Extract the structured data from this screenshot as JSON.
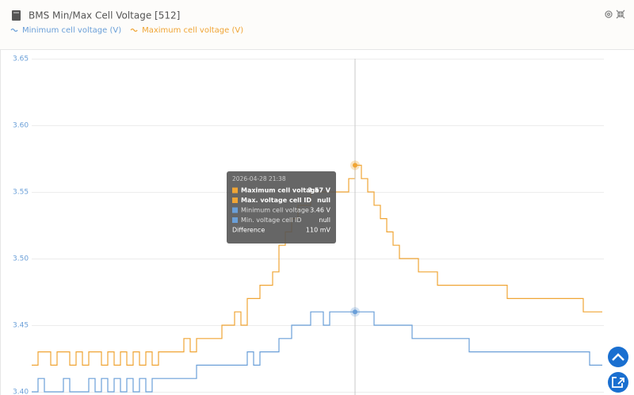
{
  "chart_data": {
    "type": "line",
    "title": "BMS Min/Max Cell Voltage [512]",
    "series": [
      {
        "name": "Minimum cell voltage (V)",
        "color": "#6a9fd8",
        "values": [
          3.4,
          3.41,
          3.4,
          3.4,
          3.4,
          3.41,
          3.4,
          3.4,
          3.4,
          3.41,
          3.4,
          3.41,
          3.4,
          3.41,
          3.4,
          3.41,
          3.4,
          3.41,
          3.4,
          3.41,
          3.41,
          3.41,
          3.41,
          3.41,
          3.41,
          3.41,
          3.42,
          3.42,
          3.42,
          3.42,
          3.42,
          3.42,
          3.42,
          3.42,
          3.43,
          3.42,
          3.43,
          3.43,
          3.43,
          3.44,
          3.44,
          3.45,
          3.45,
          3.45,
          3.46,
          3.46,
          3.45,
          3.46,
          3.46,
          3.46,
          3.46,
          3.46,
          3.46,
          3.46,
          3.45,
          3.45,
          3.45,
          3.45,
          3.45,
          3.45,
          3.44,
          3.44,
          3.44,
          3.44,
          3.44,
          3.44,
          3.44,
          3.44,
          3.44,
          3.43,
          3.43,
          3.43,
          3.43,
          3.43,
          3.43,
          3.43,
          3.43,
          3.43,
          3.43,
          3.43,
          3.43,
          3.43,
          3.43,
          3.43,
          3.43,
          3.43,
          3.43,
          3.43,
          3.42,
          3.42,
          3.42
        ]
      },
      {
        "name": "Maximum cell voltage (V)",
        "color": "#f0a535",
        "values": [
          3.42,
          3.43,
          3.43,
          3.42,
          3.43,
          3.43,
          3.42,
          3.43,
          3.42,
          3.43,
          3.43,
          3.42,
          3.43,
          3.42,
          3.43,
          3.42,
          3.43,
          3.42,
          3.43,
          3.42,
          3.43,
          3.43,
          3.43,
          3.43,
          3.44,
          3.43,
          3.44,
          3.44,
          3.44,
          3.44,
          3.45,
          3.45,
          3.46,
          3.45,
          3.47,
          3.47,
          3.48,
          3.48,
          3.49,
          3.51,
          3.52,
          3.53,
          3.54,
          3.54,
          3.55,
          3.55,
          3.55,
          3.55,
          3.55,
          3.55,
          3.56,
          3.57,
          3.56,
          3.55,
          3.54,
          3.53,
          3.52,
          3.51,
          3.5,
          3.5,
          3.5,
          3.49,
          3.49,
          3.49,
          3.48,
          3.48,
          3.48,
          3.48,
          3.48,
          3.48,
          3.48,
          3.48,
          3.48,
          3.48,
          3.48,
          3.47,
          3.47,
          3.47,
          3.47,
          3.47,
          3.47,
          3.47,
          3.47,
          3.47,
          3.47,
          3.47,
          3.47,
          3.46,
          3.46,
          3.46,
          3.46
        ]
      }
    ],
    "ylim": [
      3.4,
      3.65
    ],
    "yticks": [
      3.65,
      {
        "value": 3.6,
        "label": "3.60"
      },
      3.55,
      {
        "value": 3.5,
        "label": "3.50"
      },
      3.45,
      {
        "value": 3.4,
        "label": "3.40"
      }
    ],
    "grid": true,
    "hover_index": 51,
    "tooltip": {
      "time": "2026-04-28 21:38",
      "rows": [
        [
          "Maximum cell voltage",
          "3.57 V"
        ],
        [
          "Max. voltage cell ID",
          "null"
        ],
        [
          "Minimum cell voltage",
          "3.46 V"
        ],
        [
          "Min. voltage cell ID",
          "null"
        ],
        [
          "Difference",
          "110 mV"
        ]
      ]
    }
  }
}
